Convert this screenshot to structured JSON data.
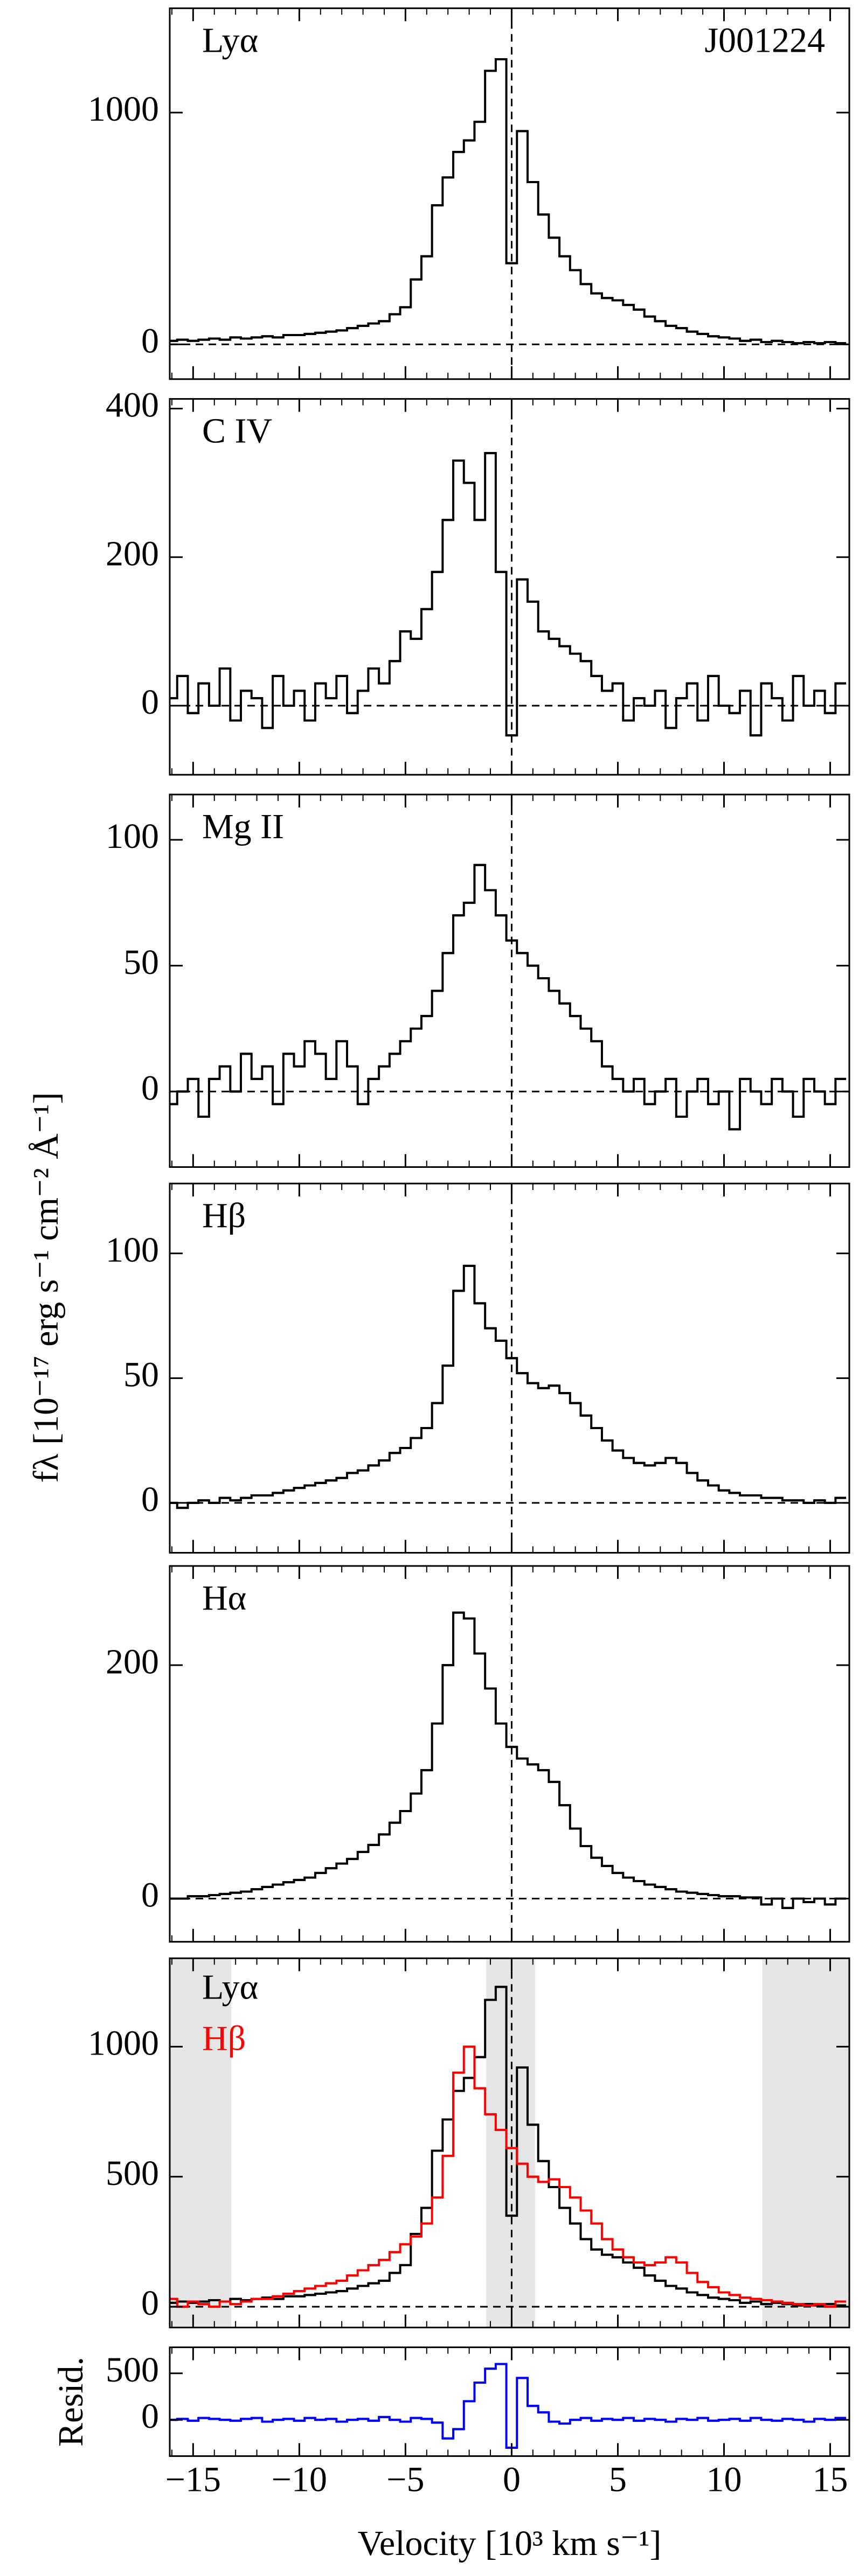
{
  "figure": {
    "ylabel": "fλ [10⁻¹⁷ erg s⁻¹ cm⁻² Å⁻¹]"
  },
  "chart_data": [
    {
      "type": "step",
      "label": "Lyα",
      "annotation": "J001224",
      "color": "#000000",
      "x": [
        -16,
        -15.5,
        -15,
        -14.5,
        -14,
        -13.5,
        -13,
        -12.5,
        -12,
        -11.5,
        -11,
        -10.5,
        -10,
        -9.5,
        -9,
        -8.5,
        -8,
        -7.5,
        -7,
        -6.5,
        -6,
        -5.5,
        -5,
        -4.5,
        -4,
        -3.5,
        -3,
        -2.5,
        -2,
        -1.5,
        -1,
        -0.5,
        0,
        0.5,
        1,
        1.5,
        2,
        2.5,
        3,
        3.5,
        4,
        4.5,
        5,
        5.5,
        6,
        6.5,
        7,
        7.5,
        8,
        8.5,
        9,
        9.5,
        10,
        10.5,
        11,
        11.5,
        12,
        12.5,
        13,
        13.5,
        14,
        14.5,
        15,
        15.5
      ],
      "values": [
        15,
        20,
        15,
        20,
        25,
        20,
        30,
        25,
        30,
        35,
        30,
        40,
        40,
        45,
        50,
        55,
        60,
        70,
        80,
        90,
        100,
        130,
        160,
        280,
        380,
        600,
        720,
        830,
        880,
        960,
        1180,
        1230,
        350,
        920,
        700,
        560,
        460,
        380,
        320,
        260,
        220,
        200,
        190,
        170,
        150,
        120,
        100,
        80,
        70,
        55,
        45,
        35,
        30,
        25,
        15,
        20,
        10,
        15,
        10,
        5,
        10,
        5,
        10,
        5
      ],
      "xlim": [
        -16.1,
        15.9
      ],
      "xticks": [
        {
          "value": -15,
          "label": "−15"
        },
        {
          "value": -10,
          "label": "−10"
        },
        {
          "value": -5,
          "label": "−5"
        },
        0,
        5,
        10,
        15
      ],
      "xminorticks": [
        -16,
        -14,
        -13,
        -12,
        -11,
        -9,
        -8,
        -7,
        -6,
        -4,
        -3,
        -2,
        -1,
        1,
        2,
        3,
        4,
        6,
        7,
        8,
        9,
        11,
        12,
        13,
        14
      ],
      "ylim": [
        -150,
        1450
      ],
      "yticks": [
        0,
        1000
      ],
      "hline": 0,
      "vline": 0
    },
    {
      "type": "step",
      "label": "C IV",
      "color": "#000000",
      "x": [
        -16,
        -15.5,
        -15,
        -14.5,
        -14,
        -13.5,
        -13,
        -12.5,
        -12,
        -11.5,
        -11,
        -10.5,
        -10,
        -9.5,
        -9,
        -8.5,
        -8,
        -7.5,
        -7,
        -6.5,
        -6,
        -5.5,
        -5,
        -4.5,
        -4,
        -3.5,
        -3,
        -2.5,
        -2,
        -1.5,
        -1,
        -0.5,
        0,
        0.5,
        1,
        1.5,
        2,
        2.5,
        3,
        3.5,
        4,
        4.5,
        5,
        5.5,
        6,
        6.5,
        7,
        7.5,
        8,
        8.5,
        9,
        9.5,
        10,
        10.5,
        11,
        11.5,
        12,
        12.5,
        13,
        13.5,
        14,
        14.5,
        15,
        15.5
      ],
      "values": [
        10,
        40,
        -10,
        30,
        0,
        50,
        -20,
        20,
        10,
        -30,
        40,
        0,
        20,
        -20,
        30,
        10,
        40,
        -10,
        20,
        50,
        30,
        60,
        100,
        90,
        130,
        180,
        250,
        330,
        300,
        250,
        340,
        180,
        -40,
        170,
        140,
        100,
        90,
        80,
        70,
        60,
        40,
        20,
        30,
        -20,
        10,
        0,
        20,
        -30,
        10,
        30,
        -20,
        40,
        0,
        -10,
        20,
        -40,
        30,
        10,
        -20,
        40,
        0,
        20,
        -10,
        30
      ],
      "xlim": [
        -16.1,
        15.9
      ],
      "xticks": [
        {
          "value": -15,
          "label": "−15"
        },
        {
          "value": -10,
          "label": "−10"
        },
        {
          "value": -5,
          "label": "−5"
        },
        0,
        5,
        10,
        15
      ],
      "xminorticks": [
        -16,
        -14,
        -13,
        -12,
        -11,
        -9,
        -8,
        -7,
        -6,
        -4,
        -3,
        -2,
        -1,
        1,
        2,
        3,
        4,
        6,
        7,
        8,
        9,
        11,
        12,
        13,
        14
      ],
      "ylim": [
        -93,
        413
      ],
      "yticks": [
        0,
        200,
        400
      ],
      "hline": 0,
      "vline": 0
    },
    {
      "type": "step",
      "label": "Mg II",
      "color": "#000000",
      "x": [
        -16,
        -15.5,
        -15,
        -14.5,
        -14,
        -13.5,
        -13,
        -12.5,
        -12,
        -11.5,
        -11,
        -10.5,
        -10,
        -9.5,
        -9,
        -8.5,
        -8,
        -7.5,
        -7,
        -6.5,
        -6,
        -5.5,
        -5,
        -4.5,
        -4,
        -3.5,
        -3,
        -2.5,
        -2,
        -1.5,
        -1,
        -0.5,
        0,
        0.5,
        1,
        1.5,
        2,
        2.5,
        3,
        3.5,
        4,
        4.5,
        5,
        5.5,
        6,
        6.5,
        7,
        7.5,
        8,
        8.5,
        9,
        9.5,
        10,
        10.5,
        11,
        11.5,
        12,
        12.5,
        13,
        13.5,
        14,
        14.5,
        15,
        15.5
      ],
      "values": [
        -5,
        0,
        5,
        -10,
        5,
        10,
        0,
        15,
        5,
        10,
        -5,
        15,
        10,
        20,
        15,
        5,
        20,
        10,
        -5,
        5,
        10,
        15,
        20,
        25,
        30,
        40,
        55,
        70,
        75,
        90,
        80,
        70,
        60,
        55,
        50,
        45,
        40,
        35,
        30,
        25,
        20,
        10,
        5,
        0,
        5,
        -5,
        0,
        5,
        -10,
        0,
        5,
        -5,
        0,
        -15,
        5,
        0,
        -5,
        5,
        0,
        -10,
        5,
        0,
        -5,
        5
      ],
      "xlim": [
        -16.1,
        15.9
      ],
      "xticks": [
        {
          "value": -15,
          "label": "−15"
        },
        {
          "value": -10,
          "label": "−10"
        },
        {
          "value": -5,
          "label": "−5"
        },
        0,
        5,
        10,
        15
      ],
      "xminorticks": [
        -16,
        -14,
        -13,
        -12,
        -11,
        -9,
        -8,
        -7,
        -6,
        -4,
        -3,
        -2,
        -1,
        1,
        2,
        3,
        4,
        6,
        7,
        8,
        9,
        11,
        12,
        13,
        14
      ],
      "ylim": [
        -30,
        118
      ],
      "yticks": [
        0,
        50,
        100
      ],
      "hline": 0,
      "vline": 0
    },
    {
      "type": "step",
      "label": "Hβ",
      "color": "#000000",
      "x": [
        -16,
        -15.5,
        -15,
        -14.5,
        -14,
        -13.5,
        -13,
        -12.5,
        -12,
        -11.5,
        -11,
        -10.5,
        -10,
        -9.5,
        -9,
        -8.5,
        -8,
        -7.5,
        -7,
        -6.5,
        -6,
        -5.5,
        -5,
        -4.5,
        -4,
        -3.5,
        -3,
        -2.5,
        -2,
        -1.5,
        -1,
        -0.5,
        0,
        0.5,
        1,
        1.5,
        2,
        2.5,
        3,
        3.5,
        4,
        4.5,
        5,
        5.5,
        6,
        6.5,
        7,
        7.5,
        8,
        8.5,
        9,
        9.5,
        10,
        10.5,
        11,
        11.5,
        12,
        12.5,
        13,
        13.5,
        14,
        14.5,
        15,
        15.5
      ],
      "values": [
        0,
        -2,
        0,
        1,
        0,
        2,
        1,
        2,
        3,
        3,
        4,
        5,
        6,
        7,
        8,
        9,
        10,
        12,
        13,
        15,
        17,
        20,
        22,
        26,
        30,
        40,
        55,
        85,
        95,
        80,
        70,
        65,
        58,
        52,
        48,
        46,
        47,
        44,
        40,
        35,
        30,
        25,
        21,
        18,
        16,
        15,
        16,
        18,
        16,
        12,
        9,
        7,
        5,
        4,
        3,
        3,
        2,
        2,
        1,
        1,
        0,
        1,
        0,
        2
      ],
      "xlim": [
        -16.1,
        15.9
      ],
      "xticks": [
        {
          "value": -15,
          "label": "−15"
        },
        {
          "value": -10,
          "label": "−10"
        },
        {
          "value": -5,
          "label": "−5"
        },
        0,
        5,
        10,
        15
      ],
      "xminorticks": [
        -16,
        -14,
        -13,
        -12,
        -11,
        -9,
        -8,
        -7,
        -6,
        -4,
        -3,
        -2,
        -1,
        1,
        2,
        3,
        4,
        6,
        7,
        8,
        9,
        11,
        12,
        13,
        14
      ],
      "ylim": [
        -20,
        128
      ],
      "yticks": [
        0,
        50,
        100
      ],
      "hline": 0,
      "vline": 0
    },
    {
      "type": "step",
      "label": "Hα",
      "color": "#000000",
      "x": [
        -16,
        -15.5,
        -15,
        -14.5,
        -14,
        -13.5,
        -13,
        -12.5,
        -12,
        -11.5,
        -11,
        -10.5,
        -10,
        -9.5,
        -9,
        -8.5,
        -8,
        -7.5,
        -7,
        -6.5,
        -6,
        -5.5,
        -5,
        -4.5,
        -4,
        -3.5,
        -3,
        -2.5,
        -2,
        -1.5,
        -1,
        -0.5,
        0,
        0.5,
        1,
        1.5,
        2,
        2.5,
        3,
        3.5,
        4,
        4.5,
        5,
        5.5,
        6,
        6.5,
        7,
        7.5,
        8,
        8.5,
        9,
        9.5,
        10,
        10.5,
        11,
        11.5,
        12,
        12.5,
        13,
        13.5,
        14,
        14.5,
        15,
        15.5
      ],
      "values": [
        0,
        0,
        2,
        2,
        3,
        4,
        5,
        6,
        8,
        10,
        12,
        14,
        16,
        18,
        22,
        26,
        30,
        34,
        40,
        46,
        55,
        65,
        75,
        90,
        110,
        150,
        200,
        245,
        240,
        210,
        180,
        150,
        130,
        120,
        115,
        110,
        100,
        80,
        60,
        45,
        35,
        28,
        22,
        18,
        15,
        12,
        10,
        8,
        6,
        5,
        4,
        3,
        2,
        2,
        1,
        1,
        -5,
        0,
        -8,
        0,
        -3,
        0,
        -5,
        0
      ],
      "xlim": [
        -16.1,
        15.9
      ],
      "xticks": [
        {
          "value": -15,
          "label": "−15"
        },
        {
          "value": -10,
          "label": "−10"
        },
        {
          "value": -5,
          "label": "−5"
        },
        0,
        5,
        10,
        15
      ],
      "xminorticks": [
        -16,
        -14,
        -13,
        -12,
        -11,
        -9,
        -8,
        -7,
        -6,
        -4,
        -3,
        -2,
        -1,
        1,
        2,
        3,
        4,
        6,
        7,
        8,
        9,
        11,
        12,
        13,
        14
      ],
      "ylim": [
        -37,
        285
      ],
      "yticks": [
        0,
        200
      ],
      "hline": 0,
      "vline": 0
    },
    {
      "type": "step",
      "x": [
        -16,
        -15.5,
        -15,
        -14.5,
        -14,
        -13.5,
        -13,
        -12.5,
        -12,
        -11.5,
        -11,
        -10.5,
        -10,
        -9.5,
        -9,
        -8.5,
        -8,
        -7.5,
        -7,
        -6.5,
        -6,
        -5.5,
        -5,
        -4.5,
        -4,
        -3.5,
        -3,
        -2.5,
        -2,
        -1.5,
        -1,
        -0.5,
        0,
        0.5,
        1,
        1.5,
        2,
        2.5,
        3,
        3.5,
        4,
        4.5,
        5,
        5.5,
        6,
        6.5,
        7,
        7.5,
        8,
        8.5,
        9,
        9.5,
        10,
        10.5,
        11,
        11.5,
        12,
        12.5,
        13,
        13.5,
        14,
        14.5,
        15,
        15.5
      ],
      "series": [
        {
          "name": "Lyα",
          "color": "#000000",
          "values": [
            15,
            20,
            15,
            20,
            25,
            20,
            30,
            25,
            30,
            35,
            30,
            40,
            40,
            45,
            50,
            55,
            60,
            70,
            80,
            90,
            100,
            130,
            160,
            280,
            380,
            600,
            720,
            830,
            880,
            960,
            1180,
            1230,
            350,
            920,
            700,
            560,
            460,
            380,
            320,
            260,
            220,
            200,
            190,
            170,
            150,
            120,
            100,
            80,
            70,
            55,
            45,
            35,
            30,
            25,
            15,
            20,
            10,
            15,
            10,
            5,
            10,
            5,
            10,
            5
          ]
        },
        {
          "name": "Hβ",
          "color": "#ff0000",
          "values": [
            30,
            0,
            20,
            10,
            0,
            20,
            10,
            20,
            30,
            30,
            40,
            50,
            60,
            70,
            80,
            90,
            100,
            120,
            140,
            160,
            180,
            210,
            240,
            270,
            320,
            420,
            580,
            900,
            1000,
            840,
            740,
            680,
            610,
            550,
            500,
            480,
            490,
            460,
            420,
            370,
            320,
            260,
            220,
            190,
            170,
            160,
            170,
            190,
            170,
            130,
            95,
            75,
            55,
            45,
            35,
            30,
            25,
            20,
            15,
            10,
            5,
            10,
            0,
            20
          ]
        }
      ],
      "shaded": [
        [
          -16.1,
          -13.2
        ],
        [
          -1.2,
          1.1
        ],
        [
          11.8,
          15.9
        ]
      ],
      "shade_color": "#e5e5e5",
      "xlim": [
        -16.1,
        15.9
      ],
      "xticks": [
        {
          "value": -15,
          "label": "−15"
        },
        {
          "value": -10,
          "label": "−10"
        },
        {
          "value": -5,
          "label": "−5"
        },
        0,
        5,
        10,
        15
      ],
      "xminorticks": [
        -16,
        -14,
        -13,
        -12,
        -11,
        -9,
        -8,
        -7,
        -6,
        -4,
        -3,
        -2,
        -1,
        1,
        2,
        3,
        4,
        6,
        7,
        8,
        9,
        11,
        12,
        13,
        14
      ],
      "ylim": [
        -80,
        1340
      ],
      "yticks": [
        0,
        500,
        1000
      ],
      "hline": 0,
      "vline": 0
    },
    {
      "type": "step",
      "ylabel": "Resid.",
      "xlabel": "Velocity [10³ km s⁻¹]",
      "color": "#0000ff",
      "show_xticklabels": true,
      "x": [
        -16,
        -15.5,
        -15,
        -14.5,
        -14,
        -13.5,
        -13,
        -12.5,
        -12,
        -11.5,
        -11,
        -10.5,
        -10,
        -9.5,
        -9,
        -8.5,
        -8,
        -7.5,
        -7,
        -6.5,
        -6,
        -5.5,
        -5,
        -4.5,
        -4,
        -3.5,
        -3,
        -2.5,
        -2,
        -1.5,
        -1,
        -0.5,
        0,
        0.5,
        1,
        1.5,
        2,
        2.5,
        3,
        3.5,
        4,
        4.5,
        5,
        5.5,
        6,
        6.5,
        7,
        7.5,
        8,
        8.5,
        9,
        9.5,
        10,
        10.5,
        11,
        11.5,
        12,
        12.5,
        13,
        13.5,
        14,
        14.5,
        15,
        15.5
      ],
      "values": [
        0,
        10,
        -10,
        20,
        10,
        0,
        -10,
        10,
        20,
        -20,
        0,
        10,
        -10,
        20,
        0,
        10,
        -20,
        0,
        10,
        -10,
        30,
        0,
        -20,
        20,
        10,
        -30,
        -200,
        -100,
        200,
        400,
        550,
        600,
        -300,
        450,
        150,
        80,
        -20,
        -40,
        0,
        20,
        -10,
        10,
        0,
        20,
        -10,
        10,
        0,
        -20,
        10,
        0,
        20,
        -10,
        0,
        10,
        -10,
        20,
        0,
        -10,
        10,
        0,
        -20,
        10,
        0,
        20
      ],
      "xlim": [
        -16.1,
        15.9
      ],
      "xticks": [
        {
          "value": -15,
          "label": "−15"
        },
        {
          "value": -10,
          "label": "−10"
        },
        {
          "value": -5,
          "label": "−5"
        },
        0,
        5,
        10,
        15
      ],
      "xminorticks": [
        -16,
        -14,
        -13,
        -12,
        -11,
        -9,
        -8,
        -7,
        -6,
        -4,
        -3,
        -2,
        -1,
        1,
        2,
        3,
        4,
        6,
        7,
        8,
        9,
        11,
        12,
        13,
        14
      ],
      "ylim": [
        -390,
        780
      ],
      "yticks": [
        0,
        500
      ]
    }
  ]
}
